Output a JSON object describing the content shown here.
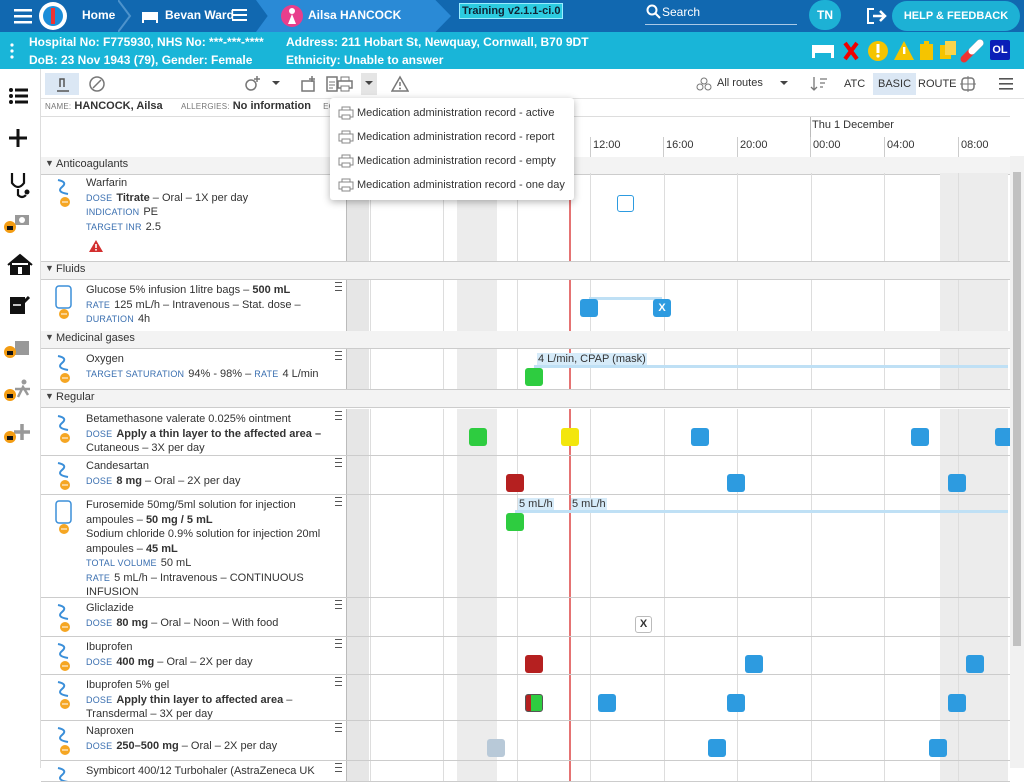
{
  "top_bar": {
    "home": "Home",
    "ward": "Bevan Ward",
    "patient": "Ailsa HANCOCK",
    "environment": "Training v2.1.1-ci.0",
    "search": "Search",
    "user_initials": "TN",
    "help": "HELP & FEEDBACK"
  },
  "patient_banner": {
    "hospital_numbers": "Hospital No: F775930, NHS No: ***-***-****",
    "birth_gender": "DoB: 23 Nov 1943 (79), Gender: Female",
    "address": "Address: 211 Hobart St, Newquay, Cornwall, B70 9DT",
    "ethnicity": "Ethnicity: Unable to answer",
    "badge": "OL"
  },
  "toolbar": {
    "routes": "All routes",
    "views": [
      "ATC",
      "BASIC",
      "ROUTE"
    ],
    "selected_view": "BASIC"
  },
  "patient_line": {
    "name_label": "NAME:",
    "name": "HANCOCK, Ailsa",
    "allergies_label": "ALLERGIES:",
    "allergies": "No information",
    "egfr_label": "EGFR"
  },
  "print_menu": [
    "Medication administration record - active",
    "Medication administration record - report",
    "Medication administration record - empty",
    "Medication administration record - one day"
  ],
  "timeline": {
    "date": "Thu 1 December",
    "times": [
      "12:00",
      "16:00",
      "20:00",
      "00:00",
      "04:00",
      "08:00"
    ]
  },
  "groups": [
    {
      "name": "Anticoagulants",
      "medications": [
        {
          "lines": [
            [
              {
                "text": "Warfarin"
              }
            ],
            [
              {
                "text": "DOSE",
                "style": "label"
              },
              {
                "text": "Titrate",
                "style": "bold"
              },
              {
                "text": " – Oral – 1X per day"
              }
            ],
            [
              {
                "text": "INDICATION",
                "style": "label"
              },
              {
                "text": "PE"
              }
            ],
            [
              {
                "text": "TARGET INR",
                "style": "label"
              },
              {
                "text": "2.5"
              }
            ]
          ]
        }
      ]
    },
    {
      "name": "Fluids",
      "medications": [
        {
          "lines": [
            [
              {
                "text": "Glucose 5% infusion 1litre bags – "
              },
              {
                "text": "500 mL",
                "style": "bold"
              }
            ],
            [
              {
                "text": "RATE",
                "style": "label"
              },
              {
                "text": "125 mL/h – Intravenous – Stat. dose –"
              }
            ],
            [
              {
                "text": "DURATION",
                "style": "label"
              },
              {
                "text": "4h"
              }
            ]
          ],
          "timeline_labels": [
            "X"
          ]
        }
      ]
    },
    {
      "name": "Medicinal gases",
      "medications": [
        {
          "lines": [
            [
              {
                "text": "Oxygen"
              }
            ],
            [
              {
                "text": "TARGET SATURATION",
                "style": "label"
              },
              {
                "text": "94% - 98% – "
              },
              {
                "text": "RATE",
                "style": "label"
              },
              {
                "text": "4 L/min"
              }
            ]
          ],
          "timeline_labels": [
            "4 L/min, CPAP (mask)"
          ]
        }
      ]
    },
    {
      "name": "Regular",
      "medications": [
        {
          "lines": [
            [
              {
                "text": "Betamethasone valerate 0.025% ointment"
              }
            ],
            [
              {
                "text": "DOSE",
                "style": "label"
              },
              {
                "text": "Apply a thin layer to the affected area –",
                "style": "bold"
              }
            ],
            [
              {
                "text": "Cutaneous – 3X per day"
              }
            ]
          ]
        },
        {
          "lines": [
            [
              {
                "text": "Candesartan"
              }
            ],
            [
              {
                "text": "DOSE",
                "style": "label"
              },
              {
                "text": "8 mg",
                "style": "bold"
              },
              {
                "text": " – Oral – 2X per day"
              }
            ]
          ]
        },
        {
          "lines": [
            [
              {
                "text": "Furosemide 50mg/5ml solution for injection"
              }
            ],
            [
              {
                "text": "ampoules – "
              },
              {
                "text": "50 mg / 5 mL",
                "style": "bold"
              }
            ],
            [
              {
                "text": "Sodium chloride 0.9% solution for injection 20ml"
              }
            ],
            [
              {
                "text": "ampoules – "
              },
              {
                "text": "45 mL",
                "style": "bold"
              }
            ],
            [
              {
                "text": "TOTAL VOLUME",
                "style": "label"
              },
              {
                "text": "50 mL"
              }
            ],
            [
              {
                "text": "RATE",
                "style": "label"
              },
              {
                "text": "5 mL/h – Intravenous – CONTINUOUS"
              }
            ],
            [
              {
                "text": "INFUSION"
              }
            ]
          ],
          "timeline_labels": [
            "5 mL/h",
            "5 mL/h"
          ]
        },
        {
          "lines": [
            [
              {
                "text": "Gliclazide"
              }
            ],
            [
              {
                "text": "DOSE",
                "style": "label"
              },
              {
                "text": "80 mg",
                "style": "bold"
              },
              {
                "text": " – Oral – Noon – With food"
              }
            ]
          ],
          "timeline_labels": [
            "X"
          ]
        },
        {
          "lines": [
            [
              {
                "text": "Ibuprofen"
              }
            ],
            [
              {
                "text": "DOSE",
                "style": "label"
              },
              {
                "text": "400 mg",
                "style": "bold"
              },
              {
                "text": " – Oral – 2X per day"
              }
            ]
          ]
        },
        {
          "lines": [
            [
              {
                "text": "Ibuprofen 5% gel"
              }
            ],
            [
              {
                "text": "DOSE",
                "style": "label"
              },
              {
                "text": "Apply thin layer to affected area",
                "style": "bold"
              },
              {
                "text": " –"
              }
            ],
            [
              {
                "text": "Transdermal – 3X per day"
              }
            ]
          ]
        },
        {
          "lines": [
            [
              {
                "text": "Naproxen"
              }
            ],
            [
              {
                "text": "DOSE",
                "style": "label"
              },
              {
                "text": "250–500 mg",
                "style": "bold"
              },
              {
                "text": " – Oral – 2X per day"
              }
            ]
          ]
        },
        {
          "lines": [
            [
              {
                "text": "Symbicort 400/12 Turbohaler (AstraZeneca UK"
              }
            ]
          ]
        }
      ]
    }
  ]
}
